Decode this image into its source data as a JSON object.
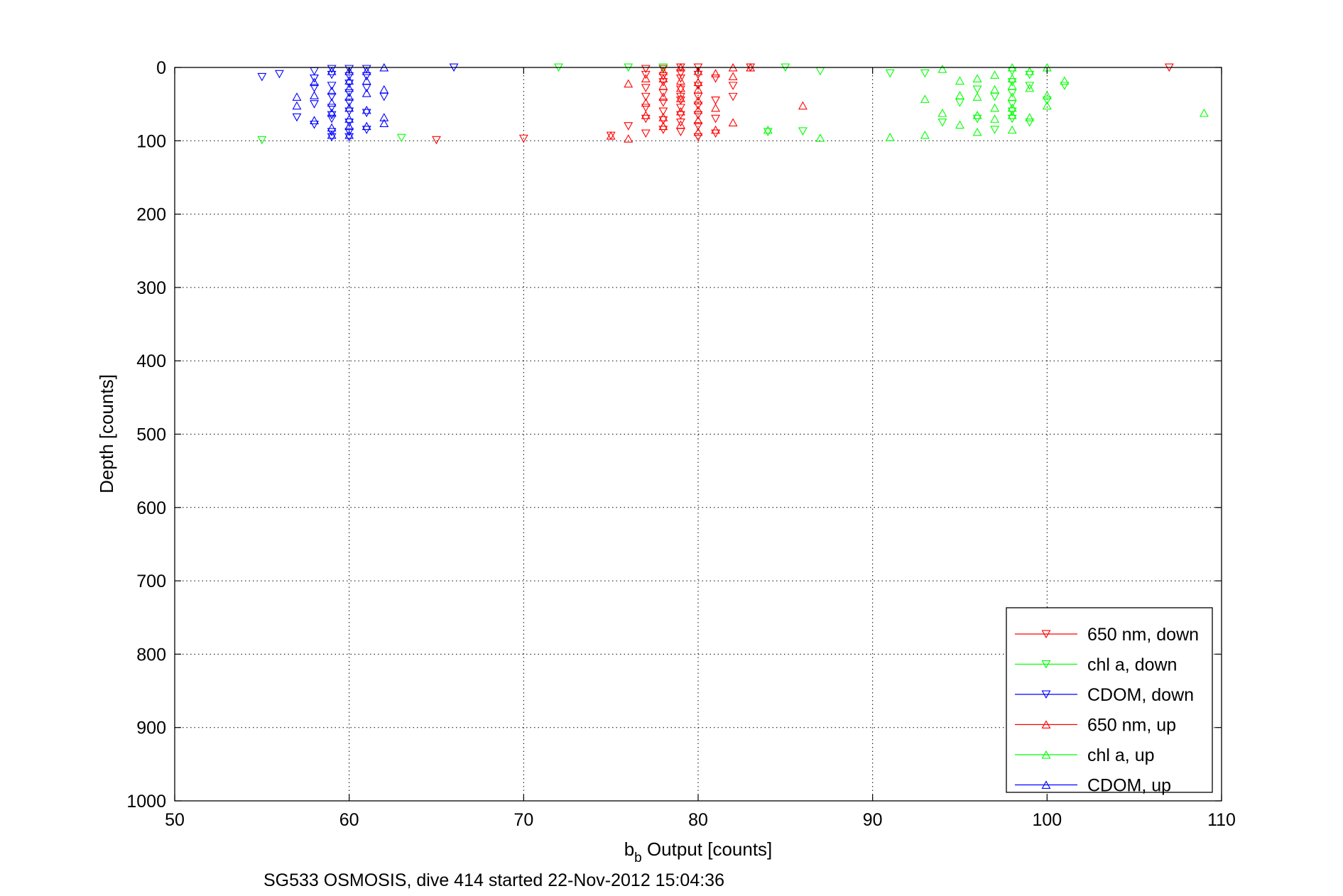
{
  "chart_data": {
    "type": "scatter",
    "title": "",
    "xlabel_main": "b",
    "xlabel_sub": "b",
    "xlabel_rest": " Output [counts]",
    "ylabel": "Depth [counts]",
    "caption": "SG533 OSMOSIS, dive 414 started 22-Nov-2012 15:04:36",
    "xlim": [
      50,
      110
    ],
    "ylim": [
      0,
      1000
    ],
    "y_reversed": true,
    "x_ticks": [
      50,
      60,
      70,
      80,
      90,
      100,
      110
    ],
    "y_ticks": [
      0,
      100,
      200,
      300,
      400,
      500,
      600,
      700,
      800,
      900,
      1000
    ],
    "x_tick_labels": [
      "50",
      "60",
      "70",
      "80",
      "90",
      "100",
      "110"
    ],
    "y_tick_labels": [
      "0",
      "100",
      "200",
      "300",
      "400",
      "500",
      "600",
      "700",
      "800",
      "900",
      "1000"
    ],
    "grid": true,
    "legend_position": "bottom-right",
    "series": [
      {
        "name": "650 nm, down",
        "color": "#ff0000",
        "marker": "triangle-down",
        "points": [
          [
            65,
            99
          ],
          [
            70,
            97
          ],
          [
            75,
            93
          ],
          [
            76,
            80
          ],
          [
            77,
            2
          ],
          [
            77,
            10
          ],
          [
            77,
            28
          ],
          [
            77,
            40
          ],
          [
            77,
            55
          ],
          [
            77,
            70
          ],
          [
            77,
            90
          ],
          [
            78,
            2
          ],
          [
            78,
            12
          ],
          [
            78,
            20
          ],
          [
            78,
            35
          ],
          [
            78,
            48
          ],
          [
            78,
            60
          ],
          [
            78,
            72
          ],
          [
            78,
            85
          ],
          [
            79,
            0
          ],
          [
            79,
            8
          ],
          [
            79,
            15
          ],
          [
            79,
            30
          ],
          [
            79,
            40
          ],
          [
            79,
            45
          ],
          [
            79,
            55
          ],
          [
            79,
            65
          ],
          [
            79,
            75
          ],
          [
            79,
            88
          ],
          [
            80,
            0
          ],
          [
            80,
            10
          ],
          [
            80,
            25
          ],
          [
            80,
            40
          ],
          [
            80,
            52
          ],
          [
            80,
            65
          ],
          [
            80,
            80
          ],
          [
            80,
            95
          ],
          [
            81,
            15
          ],
          [
            81,
            45
          ],
          [
            81,
            70
          ],
          [
            81,
            90
          ],
          [
            82,
            25
          ],
          [
            82,
            40
          ],
          [
            83,
            0
          ],
          [
            107,
            0
          ]
        ]
      },
      {
        "name": "chl a, down",
        "color": "#00ff00",
        "marker": "triangle-down",
        "points": [
          [
            55,
            99
          ],
          [
            63,
            96
          ],
          [
            72,
            0
          ],
          [
            76,
            0
          ],
          [
            78,
            0
          ],
          [
            84,
            88
          ],
          [
            85,
            0
          ],
          [
            86,
            87
          ],
          [
            87,
            5
          ],
          [
            91,
            8
          ],
          [
            93,
            8
          ],
          [
            94,
            75
          ],
          [
            95,
            48
          ],
          [
            96,
            30
          ],
          [
            96,
            70
          ],
          [
            97,
            40
          ],
          [
            97,
            85
          ],
          [
            98,
            5
          ],
          [
            98,
            20
          ],
          [
            98,
            35
          ],
          [
            98,
            50
          ],
          [
            98,
            60
          ],
          [
            98,
            70
          ],
          [
            99,
            10
          ],
          [
            99,
            25
          ],
          [
            99,
            75
          ],
          [
            100,
            45
          ],
          [
            101,
            25
          ]
        ]
      },
      {
        "name": "CDOM, down",
        "color": "#0000ff",
        "marker": "triangle-down",
        "points": [
          [
            55,
            13
          ],
          [
            56,
            9
          ],
          [
            57,
            68
          ],
          [
            58,
            5
          ],
          [
            58,
            15
          ],
          [
            58,
            28
          ],
          [
            58,
            50
          ],
          [
            58,
            78
          ],
          [
            59,
            2
          ],
          [
            59,
            10
          ],
          [
            59,
            25
          ],
          [
            59,
            40
          ],
          [
            59,
            55
          ],
          [
            59,
            65
          ],
          [
            59,
            70
          ],
          [
            59,
            88
          ],
          [
            59,
            95
          ],
          [
            60,
            2
          ],
          [
            60,
            12
          ],
          [
            60,
            22
          ],
          [
            60,
            35
          ],
          [
            60,
            48
          ],
          [
            60,
            60
          ],
          [
            60,
            75
          ],
          [
            60,
            88
          ],
          [
            60,
            95
          ],
          [
            61,
            2
          ],
          [
            61,
            12
          ],
          [
            61,
            28
          ],
          [
            61,
            62
          ],
          [
            61,
            85
          ],
          [
            62,
            40
          ],
          [
            66,
            0
          ]
        ]
      },
      {
        "name": "650 nm, up",
        "color": "#ff0000",
        "marker": "triangle-up",
        "points": [
          [
            75,
            93
          ],
          [
            76,
            22
          ],
          [
            76,
            97
          ],
          [
            77,
            15
          ],
          [
            77,
            48
          ],
          [
            77,
            65
          ],
          [
            78,
            5
          ],
          [
            78,
            15
          ],
          [
            78,
            25
          ],
          [
            78,
            40
          ],
          [
            78,
            68
          ],
          [
            78,
            80
          ],
          [
            79,
            0
          ],
          [
            79,
            18
          ],
          [
            79,
            28
          ],
          [
            79,
            42
          ],
          [
            79,
            60
          ],
          [
            79,
            78
          ],
          [
            80,
            5
          ],
          [
            80,
            20
          ],
          [
            80,
            30
          ],
          [
            80,
            45
          ],
          [
            80,
            58
          ],
          [
            80,
            72
          ],
          [
            80,
            88
          ],
          [
            81,
            8
          ],
          [
            81,
            55
          ],
          [
            81,
            85
          ],
          [
            82,
            0
          ],
          [
            82,
            12
          ],
          [
            82,
            75
          ],
          [
            83,
            0
          ],
          [
            86,
            52
          ]
        ]
      },
      {
        "name": "chl a, up",
        "color": "#00ff00",
        "marker": "triangle-up",
        "points": [
          [
            84,
            85
          ],
          [
            87,
            96
          ],
          [
            91,
            95
          ],
          [
            93,
            43
          ],
          [
            93,
            92
          ],
          [
            94,
            2
          ],
          [
            94,
            62
          ],
          [
            95,
            18
          ],
          [
            95,
            38
          ],
          [
            95,
            78
          ],
          [
            96,
            15
          ],
          [
            96,
            40
          ],
          [
            96,
            65
          ],
          [
            96,
            88
          ],
          [
            97,
            10
          ],
          [
            97,
            30
          ],
          [
            97,
            55
          ],
          [
            97,
            70
          ],
          [
            98,
            0
          ],
          [
            98,
            15
          ],
          [
            98,
            25
          ],
          [
            98,
            40
          ],
          [
            98,
            55
          ],
          [
            98,
            65
          ],
          [
            98,
            85
          ],
          [
            99,
            5
          ],
          [
            99,
            28
          ],
          [
            99,
            68
          ],
          [
            100,
            0
          ],
          [
            100,
            38
          ],
          [
            100,
            52
          ],
          [
            101,
            18
          ],
          [
            109,
            62
          ]
        ]
      },
      {
        "name": "CDOM, up",
        "color": "#0000ff",
        "marker": "triangle-up",
        "points": [
          [
            57,
            40
          ],
          [
            57,
            52
          ],
          [
            58,
            20
          ],
          [
            58,
            38
          ],
          [
            58,
            72
          ],
          [
            59,
            5
          ],
          [
            59,
            32
          ],
          [
            59,
            48
          ],
          [
            59,
            62
          ],
          [
            59,
            82
          ],
          [
            59,
            92
          ],
          [
            60,
            5
          ],
          [
            60,
            18
          ],
          [
            60,
            28
          ],
          [
            60,
            40
          ],
          [
            60,
            55
          ],
          [
            60,
            70
          ],
          [
            60,
            80
          ],
          [
            60,
            92
          ],
          [
            61,
            5
          ],
          [
            61,
            18
          ],
          [
            61,
            35
          ],
          [
            61,
            58
          ],
          [
            61,
            80
          ],
          [
            62,
            0
          ],
          [
            62,
            30
          ],
          [
            62,
            68
          ],
          [
            62,
            76
          ]
        ]
      }
    ]
  }
}
